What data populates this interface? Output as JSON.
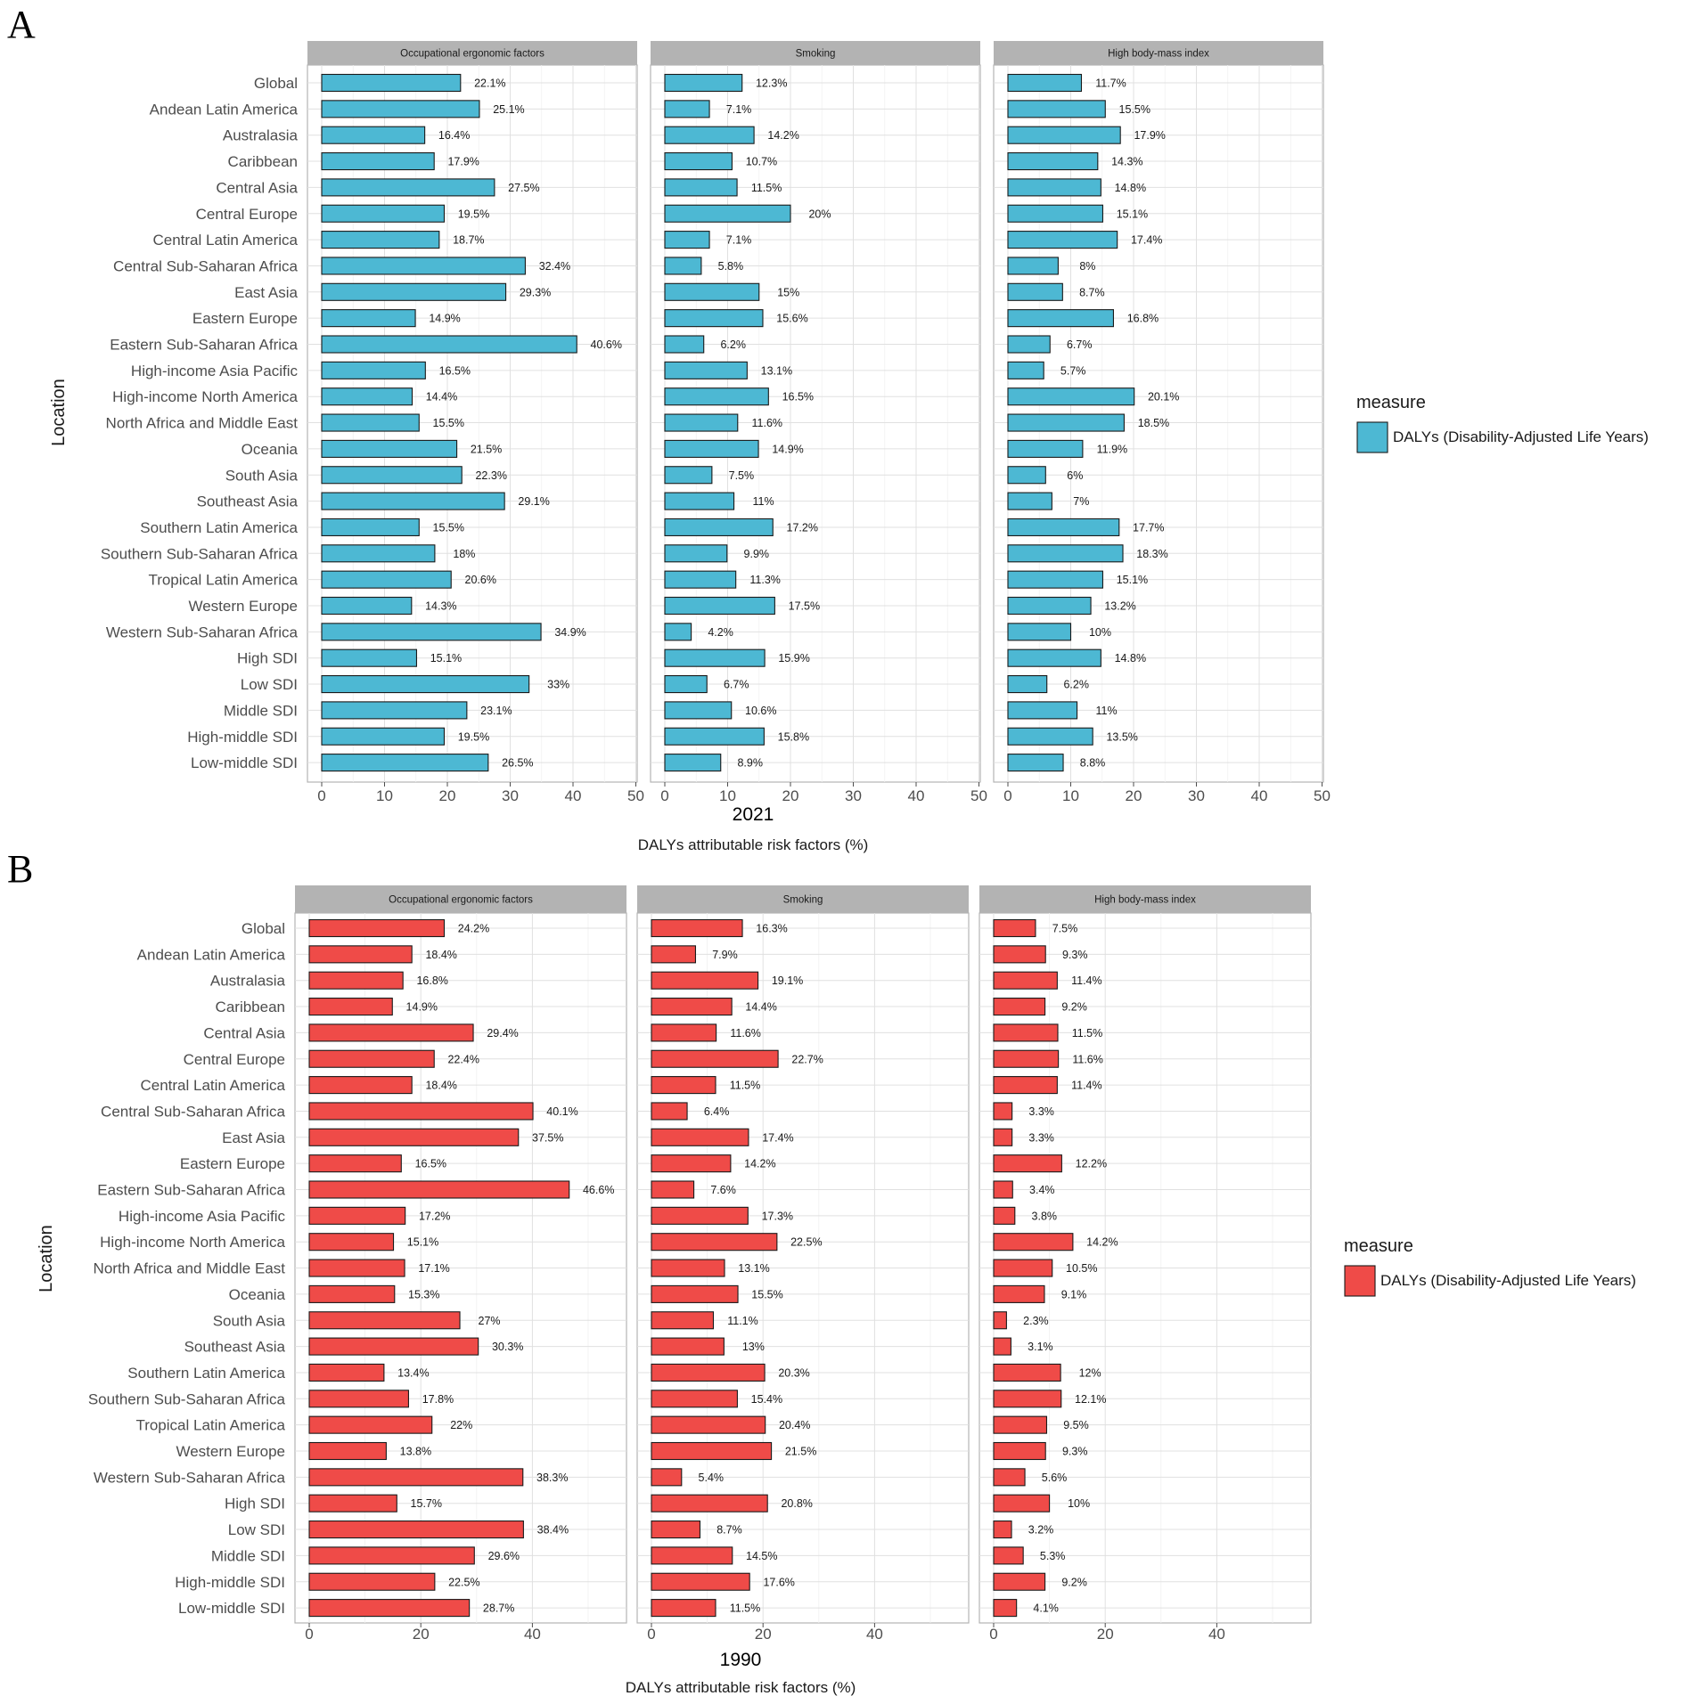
{
  "chart_data": [
    {
      "type": "bar",
      "orientation": "horizontal",
      "panel_label": "A",
      "title": "2021",
      "xlabel": "DALYs attributable risk factors (%)",
      "ylabel": "Location",
      "legend_title": "measure",
      "legend_label": "DALYs (Disability-Adjusted Life Years)",
      "color": "#4db8d3",
      "xlim": [
        0,
        50
      ],
      "xticks": [
        0,
        10,
        20,
        30,
        40,
        50
      ],
      "categories": [
        "Global",
        "Andean Latin America",
        "Australasia",
        "Caribbean",
        "Central Asia",
        "Central Europe",
        "Central Latin America",
        "Central Sub-Saharan Africa",
        "East Asia",
        "Eastern Europe",
        "Eastern Sub-Saharan Africa",
        "High-income Asia Pacific",
        "High-income North America",
        "North Africa and Middle East",
        "Oceania",
        "South Asia",
        "Southeast Asia",
        "Southern Latin America",
        "Southern Sub-Saharan Africa",
        "Tropical Latin America",
        "Western Europe",
        "Western Sub-Saharan Africa",
        "High SDI",
        "Low SDI",
        "Middle SDI",
        "High-middle SDI",
        "Low-middle SDI"
      ],
      "facets": [
        {
          "name": "Occupational ergonomic factors",
          "values": [
            22.1,
            25.1,
            16.4,
            17.9,
            27.5,
            19.5,
            18.7,
            32.4,
            29.3,
            14.9,
            40.6,
            16.5,
            14.4,
            15.5,
            21.5,
            22.3,
            29.1,
            15.5,
            18,
            20.6,
            14.3,
            34.9,
            15.1,
            33,
            23.1,
            19.5,
            26.5
          ],
          "labels": [
            "22.1%",
            "25.1%",
            "16.4%",
            "17.9%",
            "27.5%",
            "19.5%",
            "18.7%",
            "32.4%",
            "29.3%",
            "14.9%",
            "40.6%",
            "16.5%",
            "14.4%",
            "15.5%",
            "21.5%",
            "22.3%",
            "29.1%",
            "15.5%",
            "18%",
            "20.6%",
            "14.3%",
            "34.9%",
            "15.1%",
            "33%",
            "23.1%",
            "19.5%",
            "26.5%"
          ]
        },
        {
          "name": "Smoking",
          "values": [
            12.3,
            7.1,
            14.2,
            10.7,
            11.5,
            20,
            7.1,
            5.8,
            15,
            15.6,
            6.2,
            13.1,
            16.5,
            11.6,
            14.9,
            7.5,
            11,
            17.2,
            9.9,
            11.3,
            17.5,
            4.2,
            15.9,
            6.7,
            10.6,
            15.8,
            8.9
          ],
          "labels": [
            "12.3%",
            "7.1%",
            "14.2%",
            "10.7%",
            "11.5%",
            "20%",
            "7.1%",
            "5.8%",
            "15%",
            "15.6%",
            "6.2%",
            "13.1%",
            "16.5%",
            "11.6%",
            "14.9%",
            "7.5%",
            "11%",
            "17.2%",
            "9.9%",
            "11.3%",
            "17.5%",
            "4.2%",
            "15.9%",
            "6.7%",
            "10.6%",
            "15.8%",
            "8.9%"
          ]
        },
        {
          "name": "High body-mass index",
          "values": [
            11.7,
            15.5,
            17.9,
            14.3,
            14.8,
            15.1,
            17.4,
            8,
            8.7,
            16.8,
            6.7,
            5.7,
            20.1,
            18.5,
            11.9,
            6,
            7,
            17.7,
            18.3,
            15.1,
            13.2,
            10,
            14.8,
            6.2,
            11,
            13.5,
            8.8
          ],
          "labels": [
            "11.7%",
            "15.5%",
            "17.9%",
            "14.3%",
            "14.8%",
            "15.1%",
            "17.4%",
            "8%",
            "8.7%",
            "16.8%",
            "6.7%",
            "5.7%",
            "20.1%",
            "18.5%",
            "11.9%",
            "6%",
            "7%",
            "17.7%",
            "18.3%",
            "15.1%",
            "13.2%",
            "10%",
            "14.8%",
            "6.2%",
            "11%",
            "13.5%",
            "8.8%"
          ]
        }
      ]
    },
    {
      "type": "bar",
      "orientation": "horizontal",
      "panel_label": "B",
      "title": "1990",
      "xlabel": "DALYs attributable risk factors (%)",
      "ylabel": "Location",
      "legend_title": "measure",
      "legend_label": "DALYs (Disability-Adjusted Life Years)",
      "color": "#ef4b48",
      "xlim": [
        0,
        56
      ],
      "xticks": [
        0,
        20,
        40
      ],
      "categories": [
        "Global",
        "Andean Latin America",
        "Australasia",
        "Caribbean",
        "Central Asia",
        "Central Europe",
        "Central Latin America",
        "Central Sub-Saharan Africa",
        "East Asia",
        "Eastern Europe",
        "Eastern Sub-Saharan Africa",
        "High-income Asia Pacific",
        "High-income North America",
        "North Africa and Middle East",
        "Oceania",
        "South Asia",
        "Southeast Asia",
        "Southern Latin America",
        "Southern Sub-Saharan Africa",
        "Tropical Latin America",
        "Western Europe",
        "Western Sub-Saharan Africa",
        "High SDI",
        "Low SDI",
        "Middle SDI",
        "High-middle SDI",
        "Low-middle SDI"
      ],
      "facets": [
        {
          "name": "Occupational ergonomic factors",
          "values": [
            24.2,
            18.4,
            16.8,
            14.9,
            29.4,
            22.4,
            18.4,
            40.1,
            37.5,
            16.5,
            46.6,
            17.2,
            15.1,
            17.1,
            15.3,
            27,
            30.3,
            13.4,
            17.8,
            22,
            13.8,
            38.3,
            15.7,
            38.4,
            29.6,
            22.5,
            28.7
          ],
          "labels": [
            "24.2%",
            "18.4%",
            "16.8%",
            "14.9%",
            "29.4%",
            "22.4%",
            "18.4%",
            "40.1%",
            "37.5%",
            "16.5%",
            "46.6%",
            "17.2%",
            "15.1%",
            "17.1%",
            "15.3%",
            "27%",
            "30.3%",
            "13.4%",
            "17.8%",
            "22%",
            "13.8%",
            "38.3%",
            "15.7%",
            "38.4%",
            "29.6%",
            "22.5%",
            "28.7%"
          ]
        },
        {
          "name": "Smoking",
          "values": [
            16.3,
            7.9,
            19.1,
            14.4,
            11.6,
            22.7,
            11.5,
            6.4,
            17.4,
            14.2,
            7.6,
            17.3,
            22.5,
            13.1,
            15.5,
            11.1,
            13,
            20.3,
            15.4,
            20.4,
            21.5,
            5.4,
            20.8,
            8.7,
            14.5,
            17.6,
            11.5
          ],
          "labels": [
            "16.3%",
            "7.9%",
            "19.1%",
            "14.4%",
            "11.6%",
            "22.7%",
            "11.5%",
            "6.4%",
            "17.4%",
            "14.2%",
            "7.6%",
            "17.3%",
            "22.5%",
            "13.1%",
            "15.5%",
            "11.1%",
            "13%",
            "20.3%",
            "15.4%",
            "20.4%",
            "21.5%",
            "5.4%",
            "20.8%",
            "8.7%",
            "14.5%",
            "17.6%",
            "11.5%"
          ]
        },
        {
          "name": "High body-mass index",
          "values": [
            7.5,
            9.3,
            11.4,
            9.2,
            11.5,
            11.6,
            11.4,
            3.3,
            3.3,
            12.2,
            3.4,
            3.8,
            14.2,
            10.5,
            9.1,
            2.3,
            3.1,
            12,
            12.1,
            9.5,
            9.3,
            5.6,
            10,
            3.2,
            5.3,
            9.2,
            4.1
          ],
          "labels": [
            "7.5%",
            "9.3%",
            "11.4%",
            "9.2%",
            "11.5%",
            "11.6%",
            "11.4%",
            "3.3%",
            "3.3%",
            "12.2%",
            "3.4%",
            "3.8%",
            "14.2%",
            "10.5%",
            "9.1%",
            "2.3%",
            "3.1%",
            "12%",
            "12.1%",
            "9.5%",
            "9.3%",
            "5.6%",
            "10%",
            "3.2%",
            "5.3%",
            "9.2%",
            "4.1%"
          ]
        }
      ]
    }
  ]
}
